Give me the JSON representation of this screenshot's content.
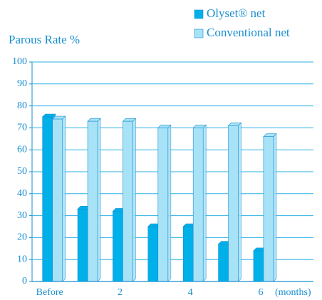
{
  "chart_data": {
    "type": "bar",
    "title": "Parous Rate %",
    "xlabel": "(months)",
    "categories": [
      "Before",
      null,
      "2",
      null,
      "4",
      null,
      "6"
    ],
    "series": [
      {
        "name": "Olyset® net",
        "color": "#00b0e8",
        "values": [
          75,
          33,
          32,
          25,
          25,
          17,
          14
        ]
      },
      {
        "name": "Conventional net",
        "color": "#a8e2f7",
        "values": [
          74,
          73,
          73,
          70,
          70,
          71,
          66
        ]
      }
    ],
    "ylim": [
      0,
      100
    ],
    "yticks": [
      0,
      10,
      20,
      30,
      40,
      50,
      60,
      70,
      80,
      90,
      100
    ],
    "grid": true,
    "legend": "top-right"
  }
}
